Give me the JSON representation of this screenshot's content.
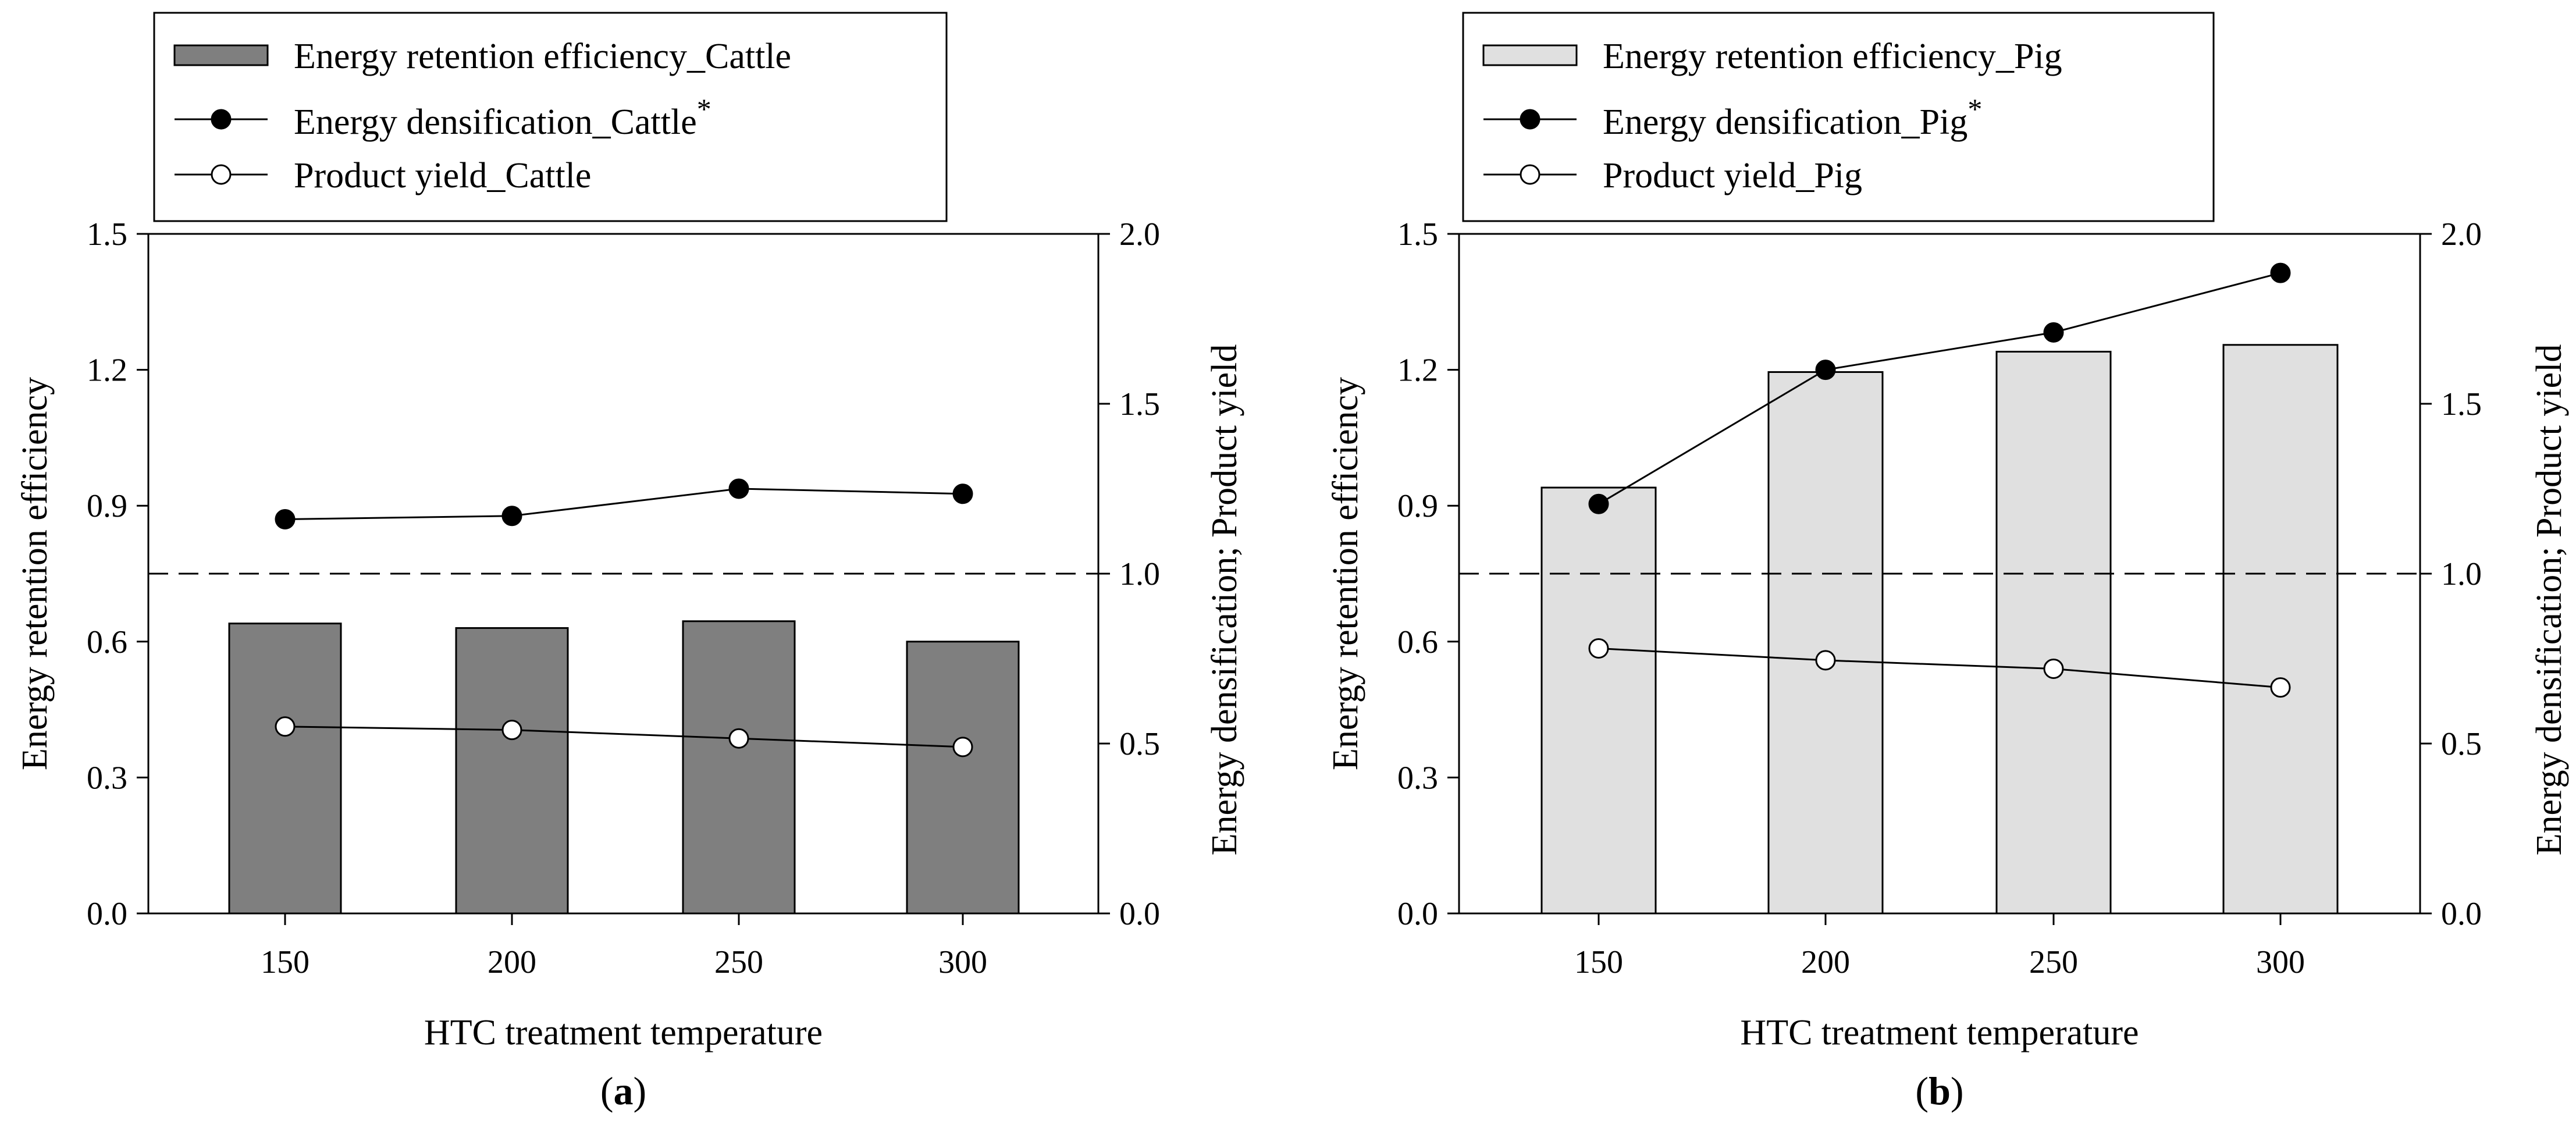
{
  "chart_data": [
    {
      "type": "bar",
      "panel_label": "a",
      "xlabel": "HTC treatment temperature",
      "ylabel_left": "Energy retention efficiency",
      "ylabel_right": "Energy densification; Product yield",
      "categories": [
        "150",
        "200",
        "250",
        "300"
      ],
      "ylim_left": [
        0,
        1.5
      ],
      "yticks_left": [
        "0.0",
        "0.3",
        "0.6",
        "0.9",
        "1.2",
        "1.5"
      ],
      "ylim_right": [
        0,
        2.0
      ],
      "yticks_right": [
        "0.0",
        "0.5",
        "1.0",
        "1.5",
        "2.0"
      ],
      "reference_line_right": 1.0,
      "bar_color": "#7f7f7f",
      "legend": {
        "bar": "Energy retention efficiency_Cattle",
        "filled": "Energy densification_Cattle",
        "filled_marker": "*",
        "open": "Product yield_Cattle"
      },
      "series": [
        {
          "name": "Energy retention efficiency_Cattle",
          "axis": "left",
          "kind": "bar",
          "values": [
            0.64,
            0.63,
            0.645,
            0.6
          ]
        },
        {
          "name": "Energy densification_Cattle",
          "axis": "right",
          "kind": "line-filled",
          "values": [
            1.16,
            1.17,
            1.25,
            1.235
          ]
        },
        {
          "name": "Product yield_Cattle",
          "axis": "right",
          "kind": "line-open",
          "values": [
            0.55,
            0.54,
            0.515,
            0.49
          ]
        }
      ]
    },
    {
      "type": "bar",
      "panel_label": "b",
      "xlabel": "HTC treatment temperature",
      "ylabel_left": "Energy retention efficiency",
      "ylabel_right": "Energy densification; Product yield",
      "categories": [
        "150",
        "200",
        "250",
        "300"
      ],
      "ylim_left": [
        0,
        1.5
      ],
      "yticks_left": [
        "0.0",
        "0.3",
        "0.6",
        "0.9",
        "1.2",
        "1.5"
      ],
      "ylim_right": [
        0,
        2.0
      ],
      "yticks_right": [
        "0.0",
        "0.5",
        "1.0",
        "1.5",
        "2.0"
      ],
      "reference_line_right": 1.0,
      "bar_color": "#e0e0e0",
      "legend": {
        "bar": "Energy retention efficiency_Pig",
        "filled": "Energy densification_Pig",
        "filled_marker": "*",
        "open": "Product yield_Pig"
      },
      "series": [
        {
          "name": "Energy retention efficiency_Pig",
          "axis": "left",
          "kind": "bar",
          "values": [
            0.94,
            1.195,
            1.24,
            1.255
          ]
        },
        {
          "name": "Energy densification_Pig",
          "axis": "right",
          "kind": "line-filled",
          "values": [
            1.205,
            1.6,
            1.71,
            1.885
          ]
        },
        {
          "name": "Product yield_Pig",
          "axis": "right",
          "kind": "line-open",
          "values": [
            0.78,
            0.745,
            0.72,
            0.665
          ]
        }
      ]
    }
  ]
}
